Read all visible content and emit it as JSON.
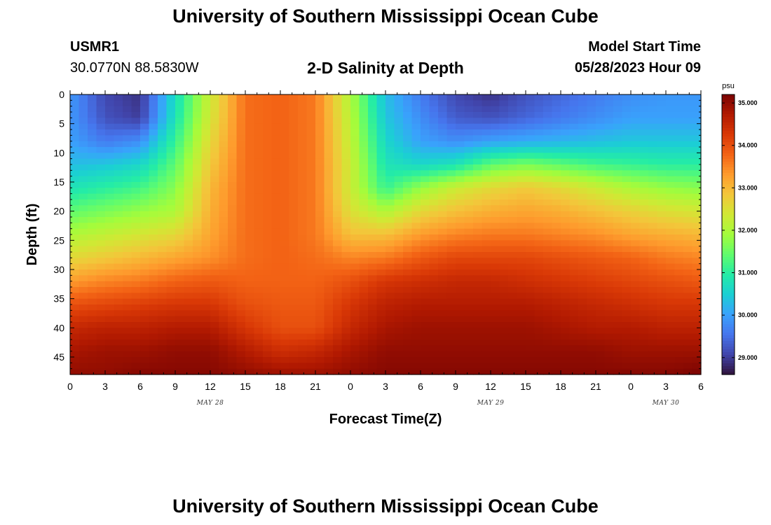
{
  "header": {
    "title": "University of Southern Mississippi Ocean Cube",
    "station_id": "USMR1",
    "coordinates": "30.0770N  88.5830W",
    "plot_title": "2-D Salinity at Depth",
    "model_start_label": "Model Start Time",
    "model_start_value": "05/28/2023 Hour 09"
  },
  "footer": {
    "title": "University of Southern Mississippi Ocean Cube"
  },
  "colors": {
    "colormap": [
      "#30123b",
      "#4145ab",
      "#4675ed",
      "#39a2fc",
      "#1bcfd4",
      "#24eca6",
      "#61fc6c",
      "#a4fc3b",
      "#d1e834",
      "#f3c63a",
      "#fe9b2d",
      "#f36315",
      "#d93806",
      "#b11901",
      "#7a0402"
    ]
  },
  "chart_data": {
    "type": "heatmap",
    "title": "2-D Salinity at Depth",
    "xlabel": "Forecast Time(Z)",
    "ylabel": "Depth (ft)",
    "x_tick_labels": [
      "0",
      "3",
      "6",
      "9",
      "12",
      "15",
      "18",
      "21",
      "0",
      "3",
      "6",
      "9",
      "12",
      "15",
      "18",
      "21",
      "0",
      "3",
      "6"
    ],
    "x_range_hours": [
      0,
      54
    ],
    "date_labels": [
      {
        "text": "MAY 28",
        "hour": 12
      },
      {
        "text": "MAY 29",
        "hour": 36
      },
      {
        "text": "MAY 30",
        "hour": 51
      }
    ],
    "y_ticks": [
      0,
      5,
      10,
      15,
      20,
      25,
      30,
      35,
      40,
      45
    ],
    "y_range_ft": [
      0,
      48
    ],
    "y_inverted": true,
    "colorbar": {
      "unit": "psu",
      "range": [
        28.6,
        35.2
      ],
      "ticks": [
        29,
        30,
        31,
        32,
        33,
        34,
        35
      ],
      "tick_labels": [
        "29.000",
        "30.000",
        "31.000",
        "32.000",
        "33.000",
        "34.000",
        "35.000"
      ]
    },
    "times_hours": [
      0,
      3,
      6,
      9,
      12,
      15,
      18,
      21,
      24,
      27,
      30,
      33,
      36,
      39,
      42,
      45,
      48,
      51,
      54
    ],
    "depths_ft": [
      0,
      4,
      8,
      12,
      16,
      20,
      24,
      28,
      32,
      36,
      40,
      44,
      48
    ],
    "salinity_psu": [
      [
        29.9,
        29.1,
        28.9,
        30.7,
        32.3,
        33.7,
        33.8,
        33.6,
        32.0,
        30.3,
        29.6,
        29.1,
        28.9,
        29.2,
        29.4,
        29.6,
        29.8,
        29.9,
        29.9
      ],
      [
        29.9,
        29.2,
        29.0,
        30.8,
        32.4,
        33.7,
        33.8,
        33.6,
        32.1,
        30.4,
        29.8,
        29.3,
        29.2,
        29.4,
        29.6,
        29.8,
        30.0,
        30.0,
        30.0
      ],
      [
        30.0,
        29.6,
        29.8,
        31.1,
        32.6,
        33.7,
        33.8,
        33.6,
        32.2,
        30.6,
        30.0,
        29.8,
        30.0,
        30.1,
        30.2,
        30.3,
        30.4,
        30.4,
        30.4
      ],
      [
        30.3,
        30.4,
        30.6,
        31.4,
        32.8,
        33.7,
        33.8,
        33.6,
        32.3,
        30.8,
        30.6,
        30.8,
        31.4,
        31.6,
        31.4,
        31.2,
        31.1,
        31.0,
        31.0
      ],
      [
        30.8,
        31.0,
        31.2,
        31.7,
        33.0,
        33.7,
        33.8,
        33.6,
        32.3,
        31.1,
        31.8,
        32.3,
        32.6,
        32.8,
        32.6,
        32.3,
        32.0,
        31.8,
        31.7
      ],
      [
        31.4,
        31.6,
        31.8,
        32.0,
        33.1,
        33.7,
        33.8,
        33.6,
        32.5,
        32.0,
        32.6,
        32.9,
        33.1,
        33.2,
        33.1,
        32.9,
        32.7,
        32.5,
        32.4
      ],
      [
        32.0,
        32.2,
        32.4,
        32.6,
        33.2,
        33.7,
        33.8,
        33.6,
        32.9,
        32.9,
        33.3,
        33.5,
        33.6,
        33.6,
        33.5,
        33.4,
        33.2,
        33.1,
        33.0
      ],
      [
        32.6,
        32.8,
        33.0,
        33.2,
        33.4,
        33.7,
        33.8,
        33.7,
        33.5,
        33.6,
        33.9,
        34.1,
        34.1,
        34.1,
        34.0,
        33.9,
        33.8,
        33.6,
        33.5
      ],
      [
        33.3,
        33.5,
        33.6,
        33.8,
        33.9,
        33.8,
        33.8,
        33.8,
        34.0,
        34.3,
        34.4,
        34.5,
        34.5,
        34.4,
        34.3,
        34.2,
        34.1,
        34.0,
        33.9
      ],
      [
        34.0,
        34.1,
        34.2,
        34.3,
        34.3,
        34.0,
        33.9,
        33.9,
        34.3,
        34.6,
        34.7,
        34.7,
        34.7,
        34.7,
        34.6,
        34.5,
        34.4,
        34.3,
        34.3
      ],
      [
        34.5,
        34.6,
        34.6,
        34.7,
        34.7,
        34.3,
        34.0,
        34.0,
        34.5,
        34.8,
        34.9,
        34.9,
        34.9,
        34.9,
        34.8,
        34.7,
        34.7,
        34.6,
        34.6
      ],
      [
        34.8,
        34.9,
        34.9,
        35.0,
        35.0,
        34.7,
        34.4,
        34.5,
        34.8,
        35.0,
        35.0,
        35.0,
        35.0,
        35.0,
        35.0,
        35.0,
        34.9,
        34.9,
        34.9
      ],
      [
        35.0,
        35.0,
        35.1,
        35.1,
        35.1,
        35.0,
        34.9,
        34.9,
        35.0,
        35.1,
        35.1,
        35.1,
        35.1,
        35.1,
        35.1,
        35.1,
        35.1,
        35.1,
        35.2
      ]
    ]
  }
}
